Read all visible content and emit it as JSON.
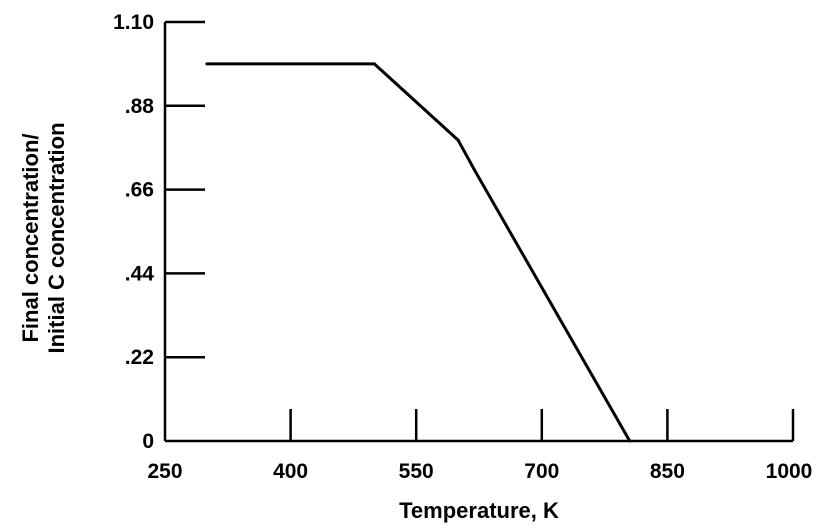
{
  "chart_data": {
    "type": "line",
    "title": "",
    "xlabel": "Temperature, K",
    "ylabel": [
      "Final concentration/",
      "Initial C concentration"
    ],
    "xlim": [
      250,
      1000
    ],
    "ylim": [
      0,
      1.1
    ],
    "x_ticks": [
      250,
      400,
      550,
      700,
      850,
      1000
    ],
    "x_tick_labels": [
      "250",
      "400",
      "550",
      "700",
      "850",
      "1000"
    ],
    "y_ticks": [
      0,
      0.22,
      0.44,
      0.66,
      0.88,
      1.1
    ],
    "y_tick_labels": [
      "0",
      ".22",
      ".44",
      ".66",
      ".88",
      "1.10"
    ],
    "grid": false,
    "series": [
      {
        "x": [
          300,
          500,
          600,
          620,
          805
        ],
        "y": [
          0.99,
          0.99,
          0.79,
          0.71,
          0.0
        ]
      }
    ]
  }
}
